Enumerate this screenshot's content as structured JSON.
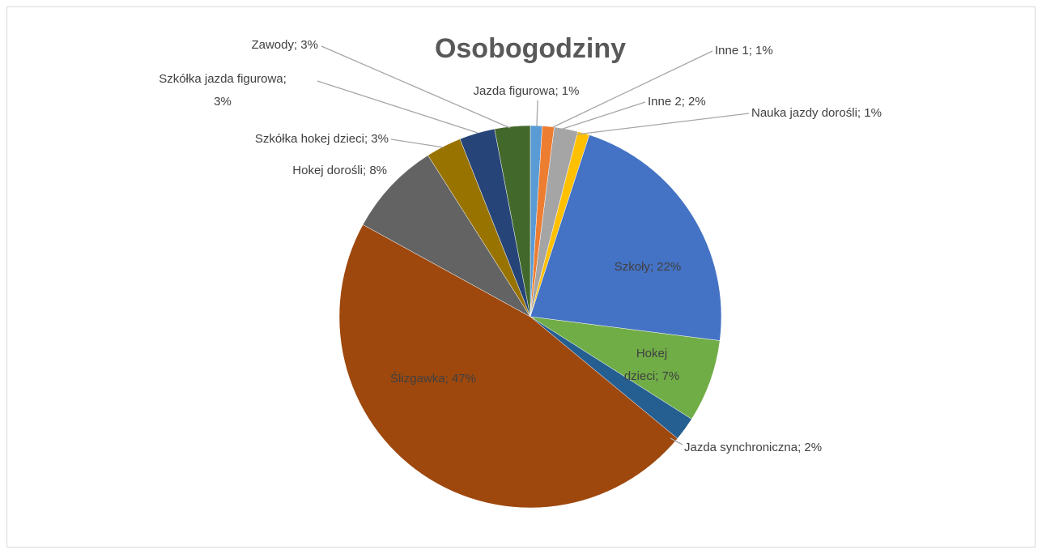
{
  "chart_data": {
    "type": "pie",
    "title": "Osobogodziny",
    "values": [
      1,
      1,
      2,
      1,
      22,
      7,
      2,
      47,
      8,
      3,
      3,
      3
    ],
    "value_labels": [
      "Jazda figurowa; 1%",
      "Inne 1; 1%",
      "Inne 2; 2%",
      "Nauka jazdy dorośli; 1%",
      "Szkoły; 22%",
      "Hokej dzieci; 7%",
      "Jazda synchroniczna; 2%",
      "Ślizgawka; 47%",
      "Hokej dorośli; 8%",
      "Szkółka hokej dzieci; 3%",
      "Szkółka jazda figurowa; 3%",
      "Zawody; 3%"
    ],
    "colors": [
      "#5b9bd5",
      "#ed7d31",
      "#a5a5a5",
      "#ffc000",
      "#4472c4",
      "#70ad47",
      "#255e91",
      "#9e480e",
      "#636363",
      "#997300",
      "#264478",
      "#43682b"
    ]
  }
}
